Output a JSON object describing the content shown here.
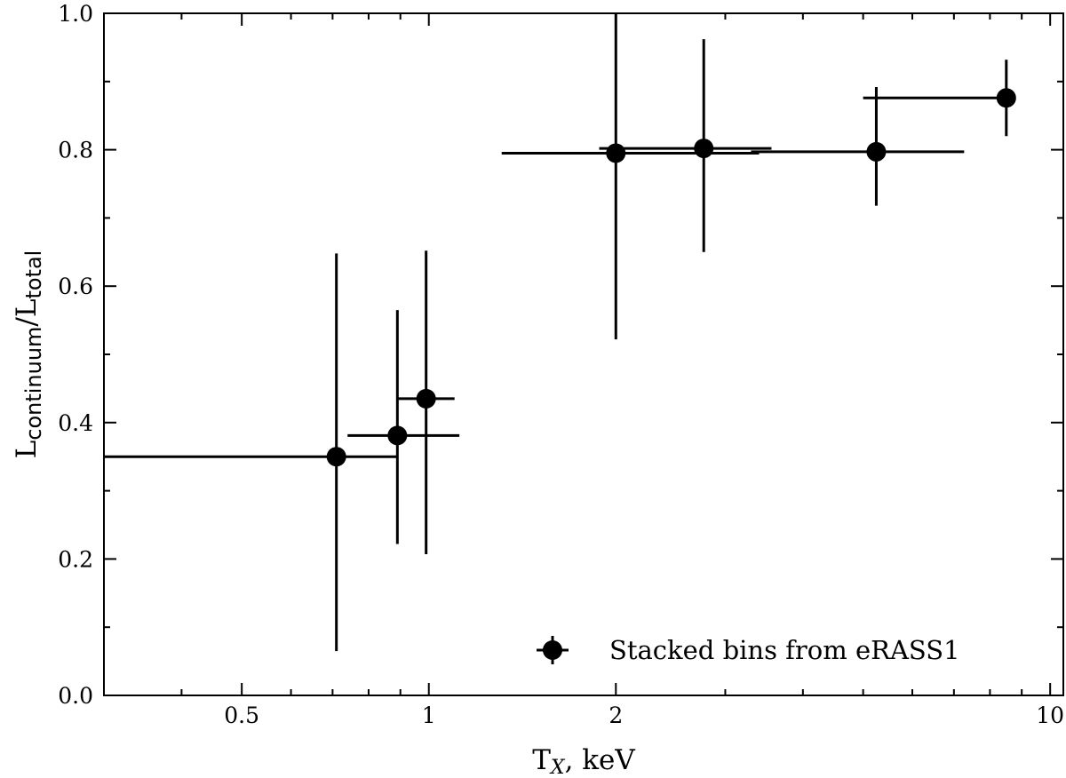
{
  "chart_data": {
    "type": "scatter",
    "x_scale": "log",
    "xlim": [
      0.3,
      10.5
    ],
    "ylim": [
      0.0,
      1.0
    ],
    "xlabel": {
      "main": "T",
      "sub": "X",
      "rest": ", keV"
    },
    "ylabel": {
      "main": "L",
      "sub1": "continuum",
      "mid": "/L",
      "sub2": "total"
    },
    "x_tick_labels": [
      {
        "value": 0.5,
        "label": "0.5"
      },
      {
        "value": 1,
        "label": "1"
      },
      {
        "value": 2,
        "label": "2"
      },
      {
        "value": 10,
        "label": "10"
      }
    ],
    "x_minor_ticks": [
      0.4,
      0.6,
      0.7,
      0.8,
      0.9,
      3,
      4,
      5,
      6,
      7,
      8,
      9
    ],
    "y_tick_labels": [
      {
        "value": 0.0,
        "label": "0.0"
      },
      {
        "value": 0.2,
        "label": "0.2"
      },
      {
        "value": 0.4,
        "label": "0.4"
      },
      {
        "value": 0.6,
        "label": "0.6"
      },
      {
        "value": 0.8,
        "label": "0.8"
      },
      {
        "value": 1.0,
        "label": "1.0"
      }
    ],
    "y_minor_step": 0.1,
    "grid": false,
    "legend_position": "bottom-right",
    "series": [
      {
        "name": "Stacked bins from eRASS1",
        "color": "#000000",
        "points": [
          {
            "x": 0.71,
            "y": 0.35,
            "xlo": 0.3,
            "xhi": 0.89,
            "ylo": 0.065,
            "yhi": 0.648
          },
          {
            "x": 0.89,
            "y": 0.381,
            "xlo": 0.74,
            "xhi": 1.12,
            "ylo": 0.222,
            "yhi": 0.565
          },
          {
            "x": 0.99,
            "y": 0.435,
            "xlo": 0.89,
            "xhi": 1.1,
            "ylo": 0.207,
            "yhi": 0.652
          },
          {
            "x": 2.0,
            "y": 0.795,
            "xlo": 1.31,
            "xhi": 3.4,
            "ylo": 0.522,
            "yhi": 1.0
          },
          {
            "x": 2.77,
            "y": 0.802,
            "xlo": 1.88,
            "xhi": 3.56,
            "ylo": 0.65,
            "yhi": 0.962
          },
          {
            "x": 5.25,
            "y": 0.797,
            "xlo": 3.3,
            "xhi": 7.27,
            "ylo": 0.718,
            "yhi": 0.892
          },
          {
            "x": 8.5,
            "y": 0.876,
            "xlo": 5.0,
            "xhi": 8.5,
            "ylo": 0.82,
            "yhi": 0.932
          }
        ]
      }
    ]
  }
}
